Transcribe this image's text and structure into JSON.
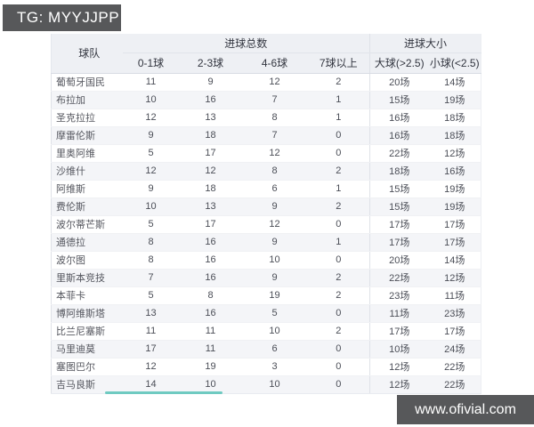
{
  "tg_badge": {
    "label": "TG: MYYJJPP"
  },
  "watermark": {
    "label": "www.ofivial.com"
  },
  "colors": {
    "badge_bg": "#57585a",
    "accent_teal": "#6fcac1",
    "header_bg": "#eef0f4",
    "stripe": "#f4f5f8"
  },
  "table": {
    "columns": {
      "team": "球队",
      "goals_total_group": "进球总数",
      "goals_size_group": "进球大小",
      "sub": [
        "0-1球",
        "2-3球",
        "4-6球",
        "7球以上",
        "大球(>2.5)",
        "小球(<2.5)"
      ]
    },
    "rows": [
      {
        "team": "葡萄牙国民",
        "values": [
          "11",
          "9",
          "12",
          "2",
          "20场",
          "14场"
        ]
      },
      {
        "team": "布拉加",
        "values": [
          "10",
          "16",
          "7",
          "1",
          "15场",
          "19场"
        ]
      },
      {
        "team": "圣克拉拉",
        "values": [
          "12",
          "13",
          "8",
          "1",
          "16场",
          "18场"
        ]
      },
      {
        "team": "摩雷伦斯",
        "values": [
          "9",
          "18",
          "7",
          "0",
          "16场",
          "18场"
        ]
      },
      {
        "team": "里奥阿维",
        "values": [
          "5",
          "17",
          "12",
          "0",
          "22场",
          "12场"
        ]
      },
      {
        "team": "沙维什",
        "values": [
          "12",
          "12",
          "8",
          "2",
          "18场",
          "16场"
        ]
      },
      {
        "team": "阿维斯",
        "values": [
          "9",
          "18",
          "6",
          "1",
          "15场",
          "19场"
        ]
      },
      {
        "team": "费伦斯",
        "values": [
          "10",
          "13",
          "9",
          "2",
          "15场",
          "19场"
        ]
      },
      {
        "team": "波尔蒂芒斯",
        "values": [
          "5",
          "17",
          "12",
          "0",
          "17场",
          "17场"
        ]
      },
      {
        "team": "通德拉",
        "values": [
          "8",
          "16",
          "9",
          "1",
          "17场",
          "17场"
        ]
      },
      {
        "team": "波尔图",
        "values": [
          "8",
          "16",
          "10",
          "0",
          "20场",
          "14场"
        ]
      },
      {
        "team": "里斯本竞技",
        "values": [
          "7",
          "16",
          "9",
          "2",
          "22场",
          "12场"
        ]
      },
      {
        "team": "本菲卡",
        "values": [
          "5",
          "8",
          "19",
          "2",
          "23场",
          "11场"
        ]
      },
      {
        "team": "博阿维斯塔",
        "values": [
          "13",
          "16",
          "5",
          "0",
          "11场",
          "23场"
        ]
      },
      {
        "team": "比兰尼塞斯",
        "values": [
          "11",
          "11",
          "10",
          "2",
          "17场",
          "17场"
        ]
      },
      {
        "team": "马里迪莫",
        "values": [
          "17",
          "11",
          "6",
          "0",
          "10场",
          "24场"
        ]
      },
      {
        "team": "塞图巴尔",
        "values": [
          "12",
          "19",
          "3",
          "0",
          "12场",
          "22场"
        ]
      },
      {
        "team": "吉马良斯",
        "values": [
          "14",
          "10",
          "10",
          "0",
          "12场",
          "22场"
        ]
      }
    ]
  }
}
